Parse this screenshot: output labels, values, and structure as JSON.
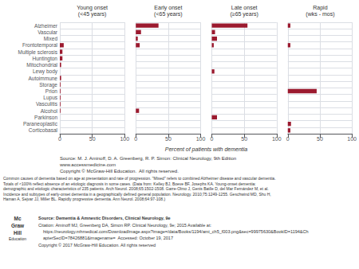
{
  "chart_data": [
    {
      "type": "bar",
      "orientation": "horizontal",
      "title": "Young onset\n(<45 years)",
      "categories": [
        "Alzheimer",
        "Vascular",
        "Mixed",
        "Frontotemporal",
        "Multiple sclerosis",
        "Huntington",
        "Mitochondrial",
        "Lewy body",
        "Autoimmune",
        "Storage",
        "Prion",
        "Lupus",
        "Vasculitis",
        "Alcohol",
        "Parkinson",
        "Paraneoplastic",
        "Corticobasal"
      ],
      "values": [
        0,
        0,
        0,
        6,
        4,
        4,
        2,
        0,
        2,
        1,
        1,
        1,
        1,
        1,
        0,
        0,
        0
      ],
      "color": "#9b1a2f",
      "xlim": [
        0,
        100
      ],
      "xticks": [
        0,
        50,
        100
      ],
      "grid": true
    },
    {
      "type": "bar",
      "orientation": "horizontal",
      "title": "Early onset\n(<65 years)",
      "categories": [
        "Alzheimer",
        "Vascular",
        "Mixed",
        "Frontotemporal",
        "Multiple sclerosis",
        "Huntington",
        "Mitochondrial",
        "Lewy body",
        "Autoimmune",
        "Storage",
        "Prion",
        "Lupus",
        "Vasculitis",
        "Alcohol",
        "Parkinson",
        "Paraneoplastic",
        "Corticobasal"
      ],
      "values": [
        35,
        8,
        3,
        6,
        0,
        0,
        0,
        0,
        0,
        0,
        0,
        0,
        0,
        5,
        0,
        0,
        0
      ],
      "color": "#9b1a2f",
      "xlim": [
        0,
        100
      ],
      "xticks": [
        0,
        50,
        100
      ],
      "grid": true,
      "tick_labels": "x"
    },
    {
      "type": "bar",
      "orientation": "horizontal",
      "title": "Late onset\n(≥65 years)",
      "categories": [
        "Alzheimer",
        "Vascular",
        "Mixed",
        "Frontotemporal",
        "Multiple sclerosis",
        "Huntington",
        "Mitochondrial",
        "Lewy body",
        "Autoimmune",
        "Storage",
        "Prion",
        "Lupus",
        "Vasculitis",
        "Alcohol",
        "Parkinson",
        "Paraneoplastic",
        "Corticobasal"
      ],
      "values": [
        55,
        5,
        8,
        3,
        0,
        0,
        0,
        4,
        0,
        0,
        0,
        0,
        0,
        0,
        8,
        0,
        0
      ],
      "color": "#9b1a2f",
      "xlim": [
        0,
        100
      ],
      "xticks": [
        0,
        50,
        100
      ],
      "grid": true,
      "tick_labels": "x"
    },
    {
      "type": "bar",
      "orientation": "horizontal",
      "title": "Rapid\n(wks - mos)",
      "categories": [
        "Alzheimer",
        "Vascular",
        "Mixed",
        "Frontotemporal",
        "Multiple sclerosis",
        "Huntington",
        "Mitochondrial",
        "Lewy body",
        "Autoimmune",
        "Storage",
        "Prion",
        "Lupus",
        "Vasculitis",
        "Alcohol",
        "Parkinson",
        "Paraneoplastic",
        "Corticobasal"
      ],
      "values": [
        4,
        0,
        0,
        4,
        0,
        0,
        0,
        0,
        0,
        0,
        45,
        0,
        0,
        0,
        0,
        5,
        4
      ],
      "color": "#9b1a2f",
      "xlim": [
        0,
        100
      ],
      "xticks": [
        0,
        50,
        100
      ],
      "grid": true,
      "tick_labels": "x"
    }
  ],
  "xlabel": "Percent of patients with dementia",
  "annotations": [
    "Source: M. J. Aminoff, D. A. Greenberg, R. P. Simon: Clinical Neurology, 9th Edition",
    "www.accessmedicine.com",
    "Copyright © McGraw-Hill Education.  All rights reserved.",
    "Common causes of dementia based on age at presentation and rate of progression. \"Mixed\" refers to combined Alzheimer disease and vascular dementia.\nTotals of <100% reflect absence of an etiologic diagnosis in some cases. (Data from: Kelley BJ, Boeve BF, Josephs KA. Young-onset dementia:\ndemographic and etiologic characteristics of 235 patients. Arch Neurol. 2008;65:1502-1508. Garre-Olmo J, Genis Batlle D, del Mar Fernández M, et al.\nIncidence and subtypes of early-onset dementia in a geographically defined general population. Neurology. 2010;75:1249-1255. Geschwind MD, Shu H,\nHaman A, Sejvar JJ, Miller BL. Rapidly progressive dementia. Ann Neurol. 2008;64:97-108.)",
    "Mc",
    "Graw",
    "Hill",
    "Education",
    "Source: Dementia & Amnestic Disorders, Clinical Neurology, 9e",
    "Citation: Aminoff MJ, Greenberg DA, Simon RP. Clinical Neurology, 9e; 2015 Available at:",
    "https://neurology.mhmedical.com/DownloadImage.aspx?image=/data/Books/1194/ami_ch5_f003.png&sec=99975630&BookID=1194&Ch",
    "apterSecID=78426881&imagename=  Accessed: October 19, 2017",
    "Copyright © 2017 McGraw-Hill Education. All rights reserved"
  ]
}
